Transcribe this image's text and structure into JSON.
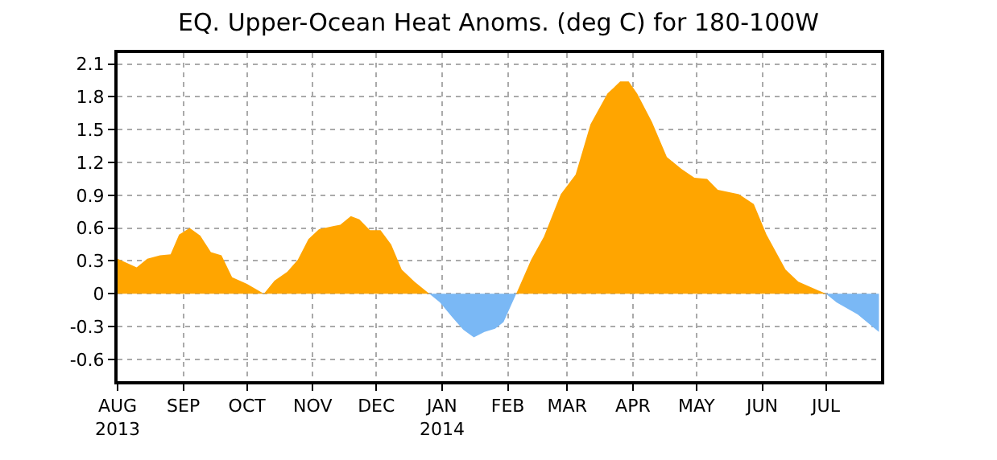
{
  "chart_data": {
    "type": "area",
    "title": "EQ. Upper-Ocean Heat Anoms. (deg C) for 180-100W",
    "x": [
      "2013-08-01",
      "2013-08-10",
      "2013-08-15",
      "2013-08-21",
      "2013-08-26",
      "2013-08-30",
      "2013-09-04",
      "2013-09-09",
      "2013-09-14",
      "2013-09-19",
      "2013-09-24",
      "2013-10-01",
      "2013-10-09",
      "2013-10-14",
      "2013-10-20",
      "2013-10-25",
      "2013-10-30",
      "2013-11-04",
      "2013-11-11",
      "2013-11-14",
      "2013-11-19",
      "2013-11-23",
      "2013-11-28",
      "2013-12-03",
      "2013-12-08",
      "2013-12-13",
      "2013-12-19",
      "2013-12-26",
      "2013-12-31",
      "2014-01-06",
      "2014-01-11",
      "2014-01-16",
      "2014-01-21",
      "2014-01-26",
      "2014-01-30",
      "2014-02-05",
      "2014-02-12",
      "2014-02-18",
      "2014-02-26",
      "2014-03-05",
      "2014-03-12",
      "2014-03-20",
      "2014-03-26",
      "2014-03-30",
      "2014-04-03",
      "2014-04-10",
      "2014-04-17",
      "2014-04-24",
      "2014-04-30",
      "2014-05-06",
      "2014-05-11",
      "2014-05-21",
      "2014-05-28",
      "2014-06-03",
      "2014-06-12",
      "2014-06-18",
      "2014-07-01",
      "2014-07-06",
      "2014-07-16",
      "2014-07-26"
    ],
    "series": [
      {
        "color": "#ffa500",
        "values": [
          0.32,
          0.24,
          0.32,
          0.35,
          0.36,
          0.54,
          0.6,
          0.53,
          0.38,
          0.35,
          0.15,
          0.09,
          0,
          0.12,
          0.2,
          0.31,
          0.5,
          0.59,
          0.62,
          0.63,
          0.71,
          0.68,
          0.58,
          0.58,
          0.45,
          0.22,
          0.11,
          0,
          null,
          null,
          null,
          null,
          null,
          null,
          null,
          0,
          0.31,
          0.52,
          0.91,
          1.09,
          1.55,
          1.83,
          1.94,
          1.94,
          1.83,
          1.57,
          1.25,
          1.14,
          1.06,
          1.05,
          0.95,
          0.91,
          0.82,
          0.54,
          0.22,
          0.11,
          0,
          null,
          null,
          null
        ]
      },
      {
        "color": "#7ab8f5",
        "values": [
          null,
          null,
          null,
          null,
          null,
          null,
          null,
          null,
          null,
          null,
          null,
          null,
          null,
          null,
          null,
          null,
          null,
          null,
          null,
          null,
          null,
          null,
          null,
          null,
          null,
          null,
          null,
          0,
          -0.08,
          -0.22,
          -0.33,
          -0.4,
          -0.35,
          -0.32,
          -0.26,
          0,
          null,
          null,
          null,
          null,
          null,
          null,
          null,
          null,
          null,
          null,
          null,
          null,
          null,
          null,
          null,
          null,
          null,
          null,
          null,
          null,
          0,
          -0.08,
          -0.19,
          -0.35
        ]
      }
    ],
    "xlim": [
      "2013-08-01",
      "2014-07-27"
    ],
    "xticks": [
      {
        "value": "2013-08-01",
        "label": "AUG\n2013"
      },
      {
        "value": "2013-09-01",
        "label": "SEP"
      },
      {
        "value": "2013-10-01",
        "label": "OCT"
      },
      {
        "value": "2013-11-01",
        "label": "NOV"
      },
      {
        "value": "2013-12-01",
        "label": "DEC"
      },
      {
        "value": "2014-01-01",
        "label": "JAN\n2014"
      },
      {
        "value": "2014-02-01",
        "label": "FEB"
      },
      {
        "value": "2014-03-01",
        "label": "MAR"
      },
      {
        "value": "2014-04-01",
        "label": "APR"
      },
      {
        "value": "2014-05-01",
        "label": "MAY"
      },
      {
        "value": "2014-06-01",
        "label": "JUN"
      },
      {
        "value": "2014-07-01",
        "label": "JUL"
      }
    ],
    "ylim": [
      -0.8,
      2.2
    ],
    "yticks": [
      -0.6,
      -0.3,
      0,
      0.3,
      0.6,
      0.9,
      1.2,
      1.5,
      1.8,
      2.1
    ],
    "grid": true
  }
}
